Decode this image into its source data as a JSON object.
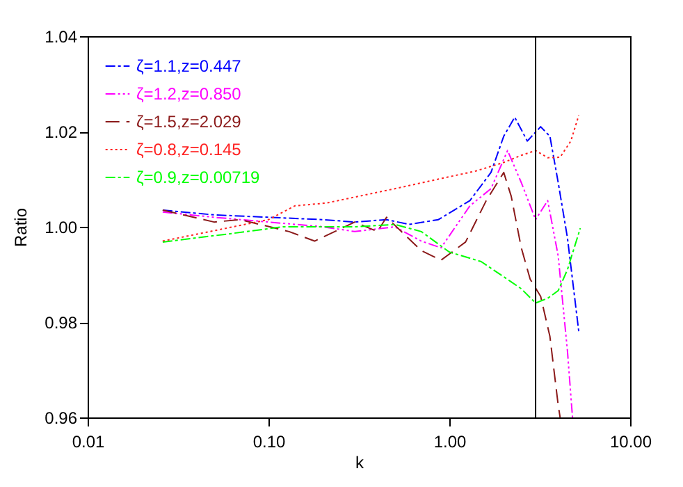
{
  "chart_data": {
    "type": "line",
    "xlabel": "k",
    "ylabel": "Ratio",
    "log": "x",
    "xlim": [
      0.01,
      10
    ],
    "ylim": [
      0.96,
      1.04
    ],
    "xticks": [
      {
        "value": 0.01,
        "label": "0.01"
      },
      {
        "value": 0.1,
        "label": "0.10"
      },
      {
        "value": 1,
        "label": "1.00"
      },
      {
        "value": 10,
        "label": "10.00"
      }
    ],
    "yticks": [
      {
        "value": 0.96,
        "label": "0.96"
      },
      {
        "value": 0.98,
        "label": "0.98"
      },
      {
        "value": 1,
        "label": "1.00"
      },
      {
        "value": 1.02,
        "label": "1.02"
      },
      {
        "value": 1.04,
        "label": "1.04"
      }
    ],
    "grid": false,
    "legend": "top left",
    "marker": "none",
    "ref_lines": [
      {
        "axis": "x",
        "value": 3,
        "color": "#000000",
        "line_style": "solid"
      }
    ],
    "series": [
      {
        "name": "ζ=1.1,z=0.447",
        "color": "#0000ff",
        "line_style": "dashed",
        "x": [
          0.026,
          0.05,
          0.1,
          0.2,
          0.3,
          0.45,
          0.6,
          0.87,
          1.3,
          1.7,
          2.0,
          2.3,
          2.7,
          3.2,
          3.6,
          4.0,
          4.5,
          5.2
        ],
        "values": [
          1.0035,
          1.0025,
          1.002,
          1.0015,
          1.001,
          1.0015,
          1.0005,
          1.0015,
          1.0055,
          1.0114,
          1.019,
          1.023,
          1.018,
          1.021,
          1.019,
          1.0093,
          0.9977,
          0.978
        ]
      },
      {
        "name": "ζ=1.2,z=0.850",
        "color": "#ff00ff",
        "line_style": "dashed",
        "x": [
          0.026,
          0.05,
          0.1,
          0.2,
          0.3,
          0.5,
          0.7,
          0.9,
          1.3,
          1.7,
          2.1,
          2.5,
          3.0,
          3.5,
          4.0,
          4.5,
          4.8
        ],
        "values": [
          1.0031,
          1.002,
          1.001,
          1.0,
          0.999,
          1.0,
          0.997,
          0.9956,
          1.0044,
          1.008,
          1.016,
          1.0093,
          1.0015,
          1.0055,
          0.9939,
          0.974,
          0.96
        ]
      },
      {
        "name": "ζ=1.5,z=2.029",
        "color": "#8b1a1a",
        "line_style": "dashed",
        "x": [
          0.026,
          0.05,
          0.07,
          0.13,
          0.18,
          0.3,
          0.4,
          0.45,
          0.7,
          0.9,
          1.23,
          1.6,
          2.0,
          2.2,
          2.5,
          2.8,
          3.2,
          3.6,
          4.0,
          4.1
        ],
        "values": [
          1.0035,
          1.001,
          1.0015,
          0.999,
          0.997,
          1.001,
          0.999,
          1.002,
          0.995,
          0.993,
          0.9968,
          1.0055,
          1.0114,
          1.0064,
          0.9956,
          0.989,
          0.9854,
          0.977,
          0.9626,
          0.96
        ]
      },
      {
        "name": "ζ=0.8,z=0.145",
        "color": "#ff2020",
        "line_style": "dotted",
        "x": [
          0.026,
          0.1,
          0.14,
          0.21,
          0.5,
          1.0,
          1.4,
          2.0,
          2.5,
          3.0,
          3.5,
          4.1,
          4.7,
          5.2
        ],
        "values": [
          0.997,
          1.0015,
          1.0044,
          1.005,
          1.008,
          1.0105,
          1.0117,
          1.0135,
          1.015,
          1.016,
          1.0145,
          1.0146,
          1.018,
          1.0234
        ]
      },
      {
        "name": "ζ=0.9,z=0.00719",
        "color": "#00ff00",
        "line_style": "dashed",
        "x": [
          0.026,
          0.06,
          0.12,
          0.3,
          0.5,
          0.7,
          1.0,
          1.5,
          2.0,
          2.5,
          3.0,
          3.5,
          4.0,
          4.5,
          5.3
        ],
        "values": [
          0.9968,
          0.9985,
          1.0,
          1.0,
          1.0005,
          0.999,
          0.9947,
          0.9927,
          0.9895,
          0.987,
          0.984,
          0.985,
          0.9866,
          0.991,
          0.9997
        ]
      }
    ]
  }
}
